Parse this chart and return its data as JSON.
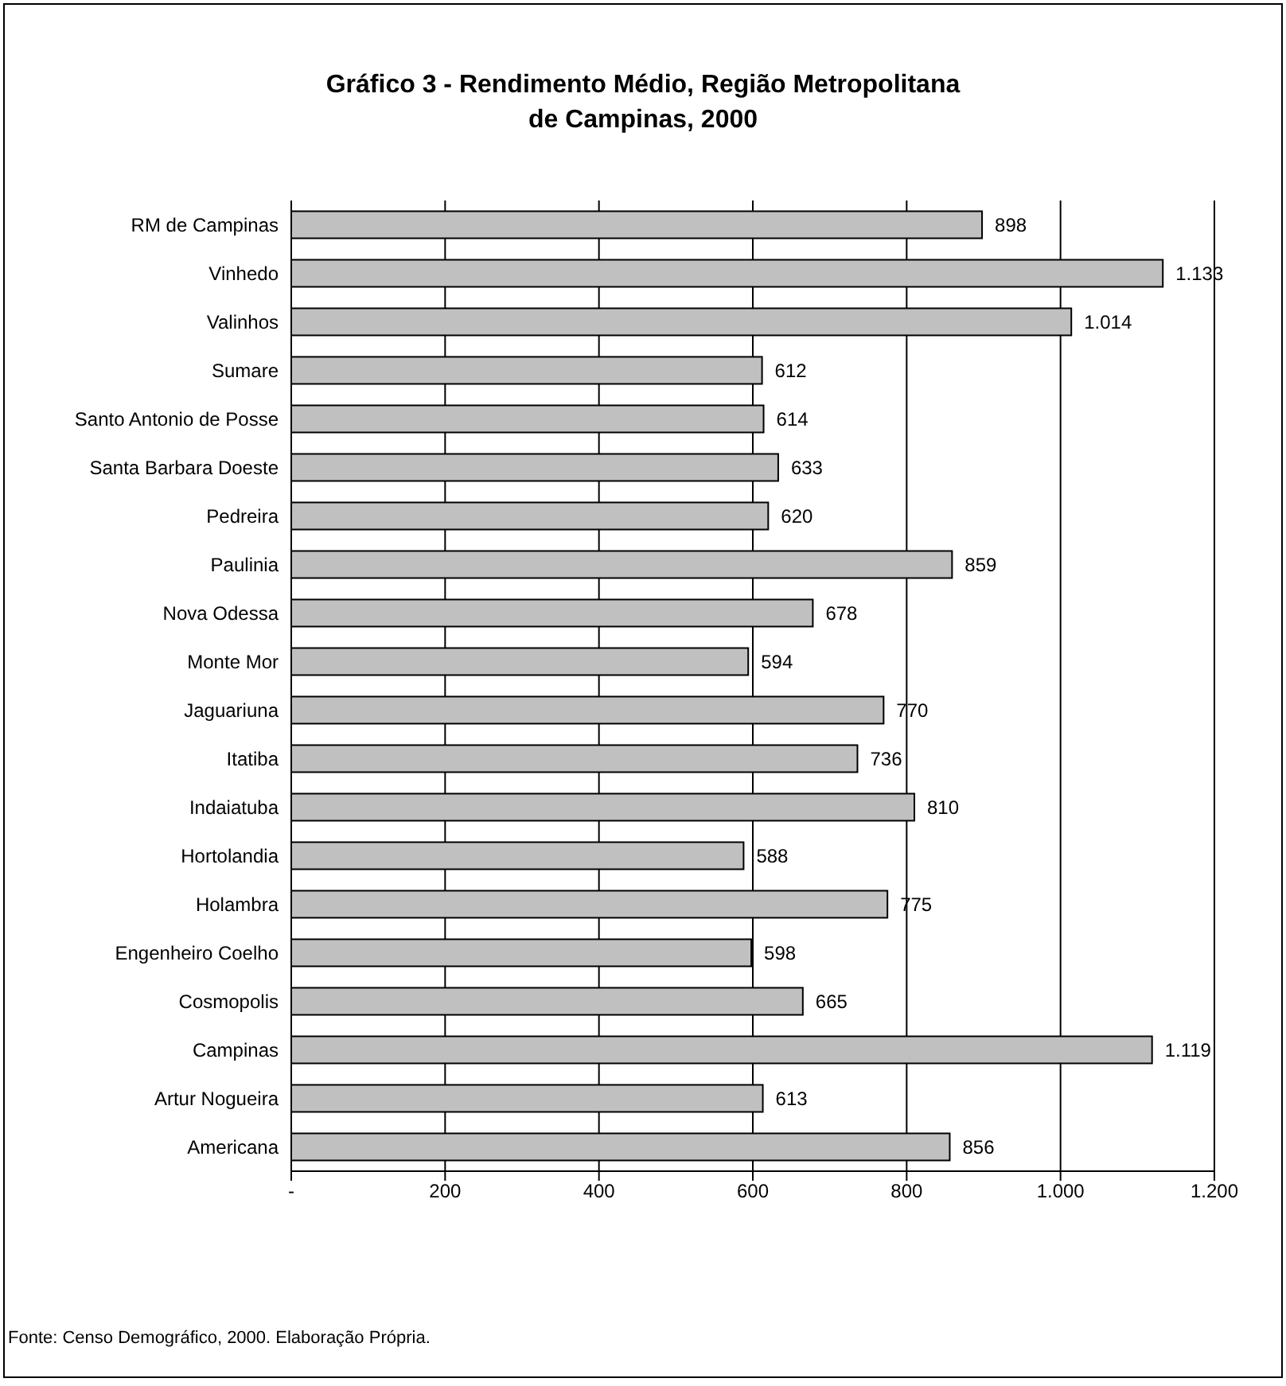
{
  "chart_data": {
    "type": "bar",
    "orientation": "horizontal",
    "title": "Gráfico 3 - Rendimento Médio, Região Metropolitana de Campinas, 2000",
    "categories": [
      "RM de Campinas",
      "Vinhedo",
      "Valinhos",
      "Sumare",
      "Santo Antonio de Posse",
      "Santa Barbara Doeste",
      "Pedreira",
      "Paulinia",
      "Nova Odessa",
      "Monte Mor",
      "Jaguariuna",
      "Itatiba",
      "Indaiatuba",
      "Hortolandia",
      "Holambra",
      "Engenheiro Coelho",
      "Cosmopolis",
      "Campinas",
      "Artur Nogueira",
      "Americana"
    ],
    "values": [
      898,
      1133,
      1014,
      612,
      614,
      633,
      620,
      859,
      678,
      594,
      770,
      736,
      810,
      588,
      775,
      598,
      665,
      1119,
      613,
      856
    ],
    "value_labels": [
      "898",
      "1.133",
      "1.014",
      "612",
      "614",
      "633",
      "620",
      "859",
      "678",
      "594",
      "770",
      "736",
      "810",
      "588",
      "775",
      "598",
      "665",
      "1.119",
      "613",
      "856"
    ],
    "color": "#c0c0c0",
    "xlim": [
      0,
      1200
    ],
    "xticks": [
      {
        "value": 0,
        "label": "-"
      },
      200,
      400,
      600,
      800,
      {
        "value": 1000,
        "label": "1.000"
      },
      {
        "value": 1200,
        "label": "1.200"
      }
    ],
    "grid": "x",
    "annotations": [
      "Fonte: Censo Demográfico, 2000. Elaboração Própria."
    ]
  }
}
